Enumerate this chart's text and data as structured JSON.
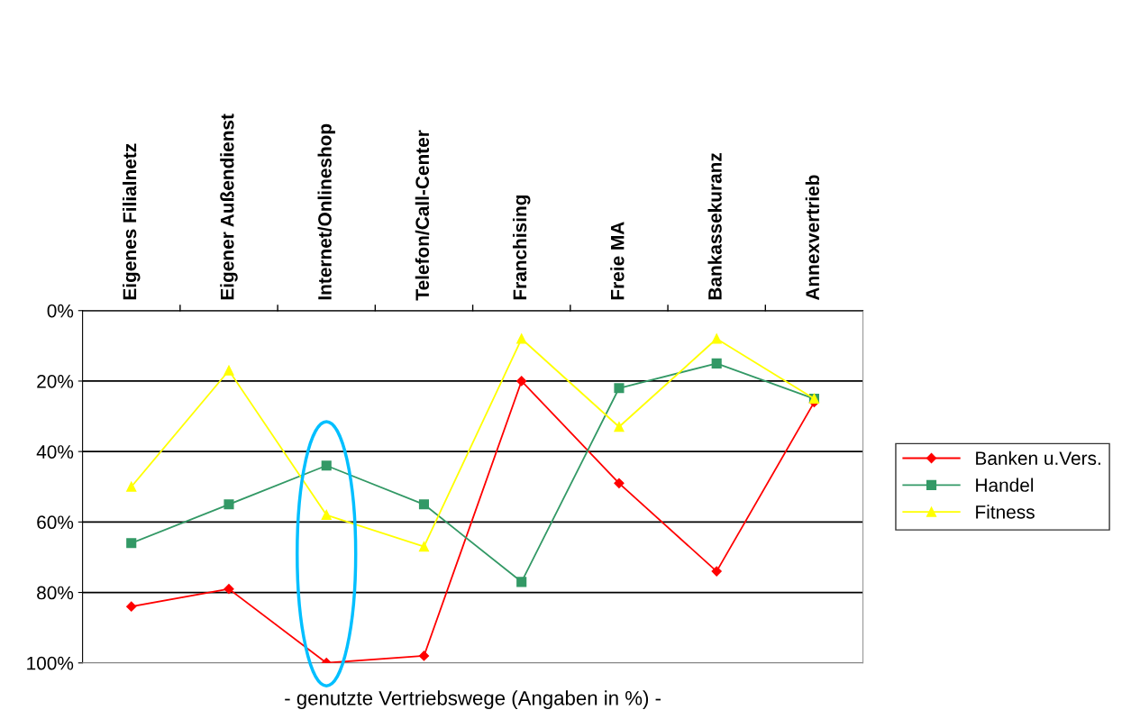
{
  "chart_data": {
    "type": "line",
    "xlabel": "- genutzte Vertriebswege (Angaben in %) -",
    "categories": [
      "Eigenes Filialnetz",
      "Eigener Außendienst",
      "Internet/Onlineshop",
      "Telefon/Call-Center",
      "Franchising",
      "Freie MA",
      "Bankassekuranz",
      "Annexvertrieb"
    ],
    "series": [
      {
        "name": "Banken u.Vers.",
        "color": "#ff0000",
        "marker": "diamond",
        "values": [
          84,
          79,
          100,
          98,
          20,
          49,
          74,
          26
        ]
      },
      {
        "name": "Handel",
        "color": "#339966",
        "marker": "square",
        "values": [
          66,
          55,
          44,
          55,
          77,
          22,
          15,
          25
        ]
      },
      {
        "name": "Fitness",
        "color": "#ffff00",
        "marker": "triangle",
        "values": [
          50,
          17,
          58,
          67,
          8,
          33,
          8,
          25
        ]
      }
    ],
    "ylim": [
      100,
      0
    ],
    "yticks": [
      {
        "value": 0,
        "label": "0%"
      },
      {
        "value": 20,
        "label": "20%"
      },
      {
        "value": 40,
        "label": "40%"
      },
      {
        "value": 60,
        "label": "60%"
      },
      {
        "value": 80,
        "label": "80%"
      },
      {
        "value": 100,
        "label": "100%"
      }
    ],
    "grid": "y",
    "legend": "right"
  }
}
